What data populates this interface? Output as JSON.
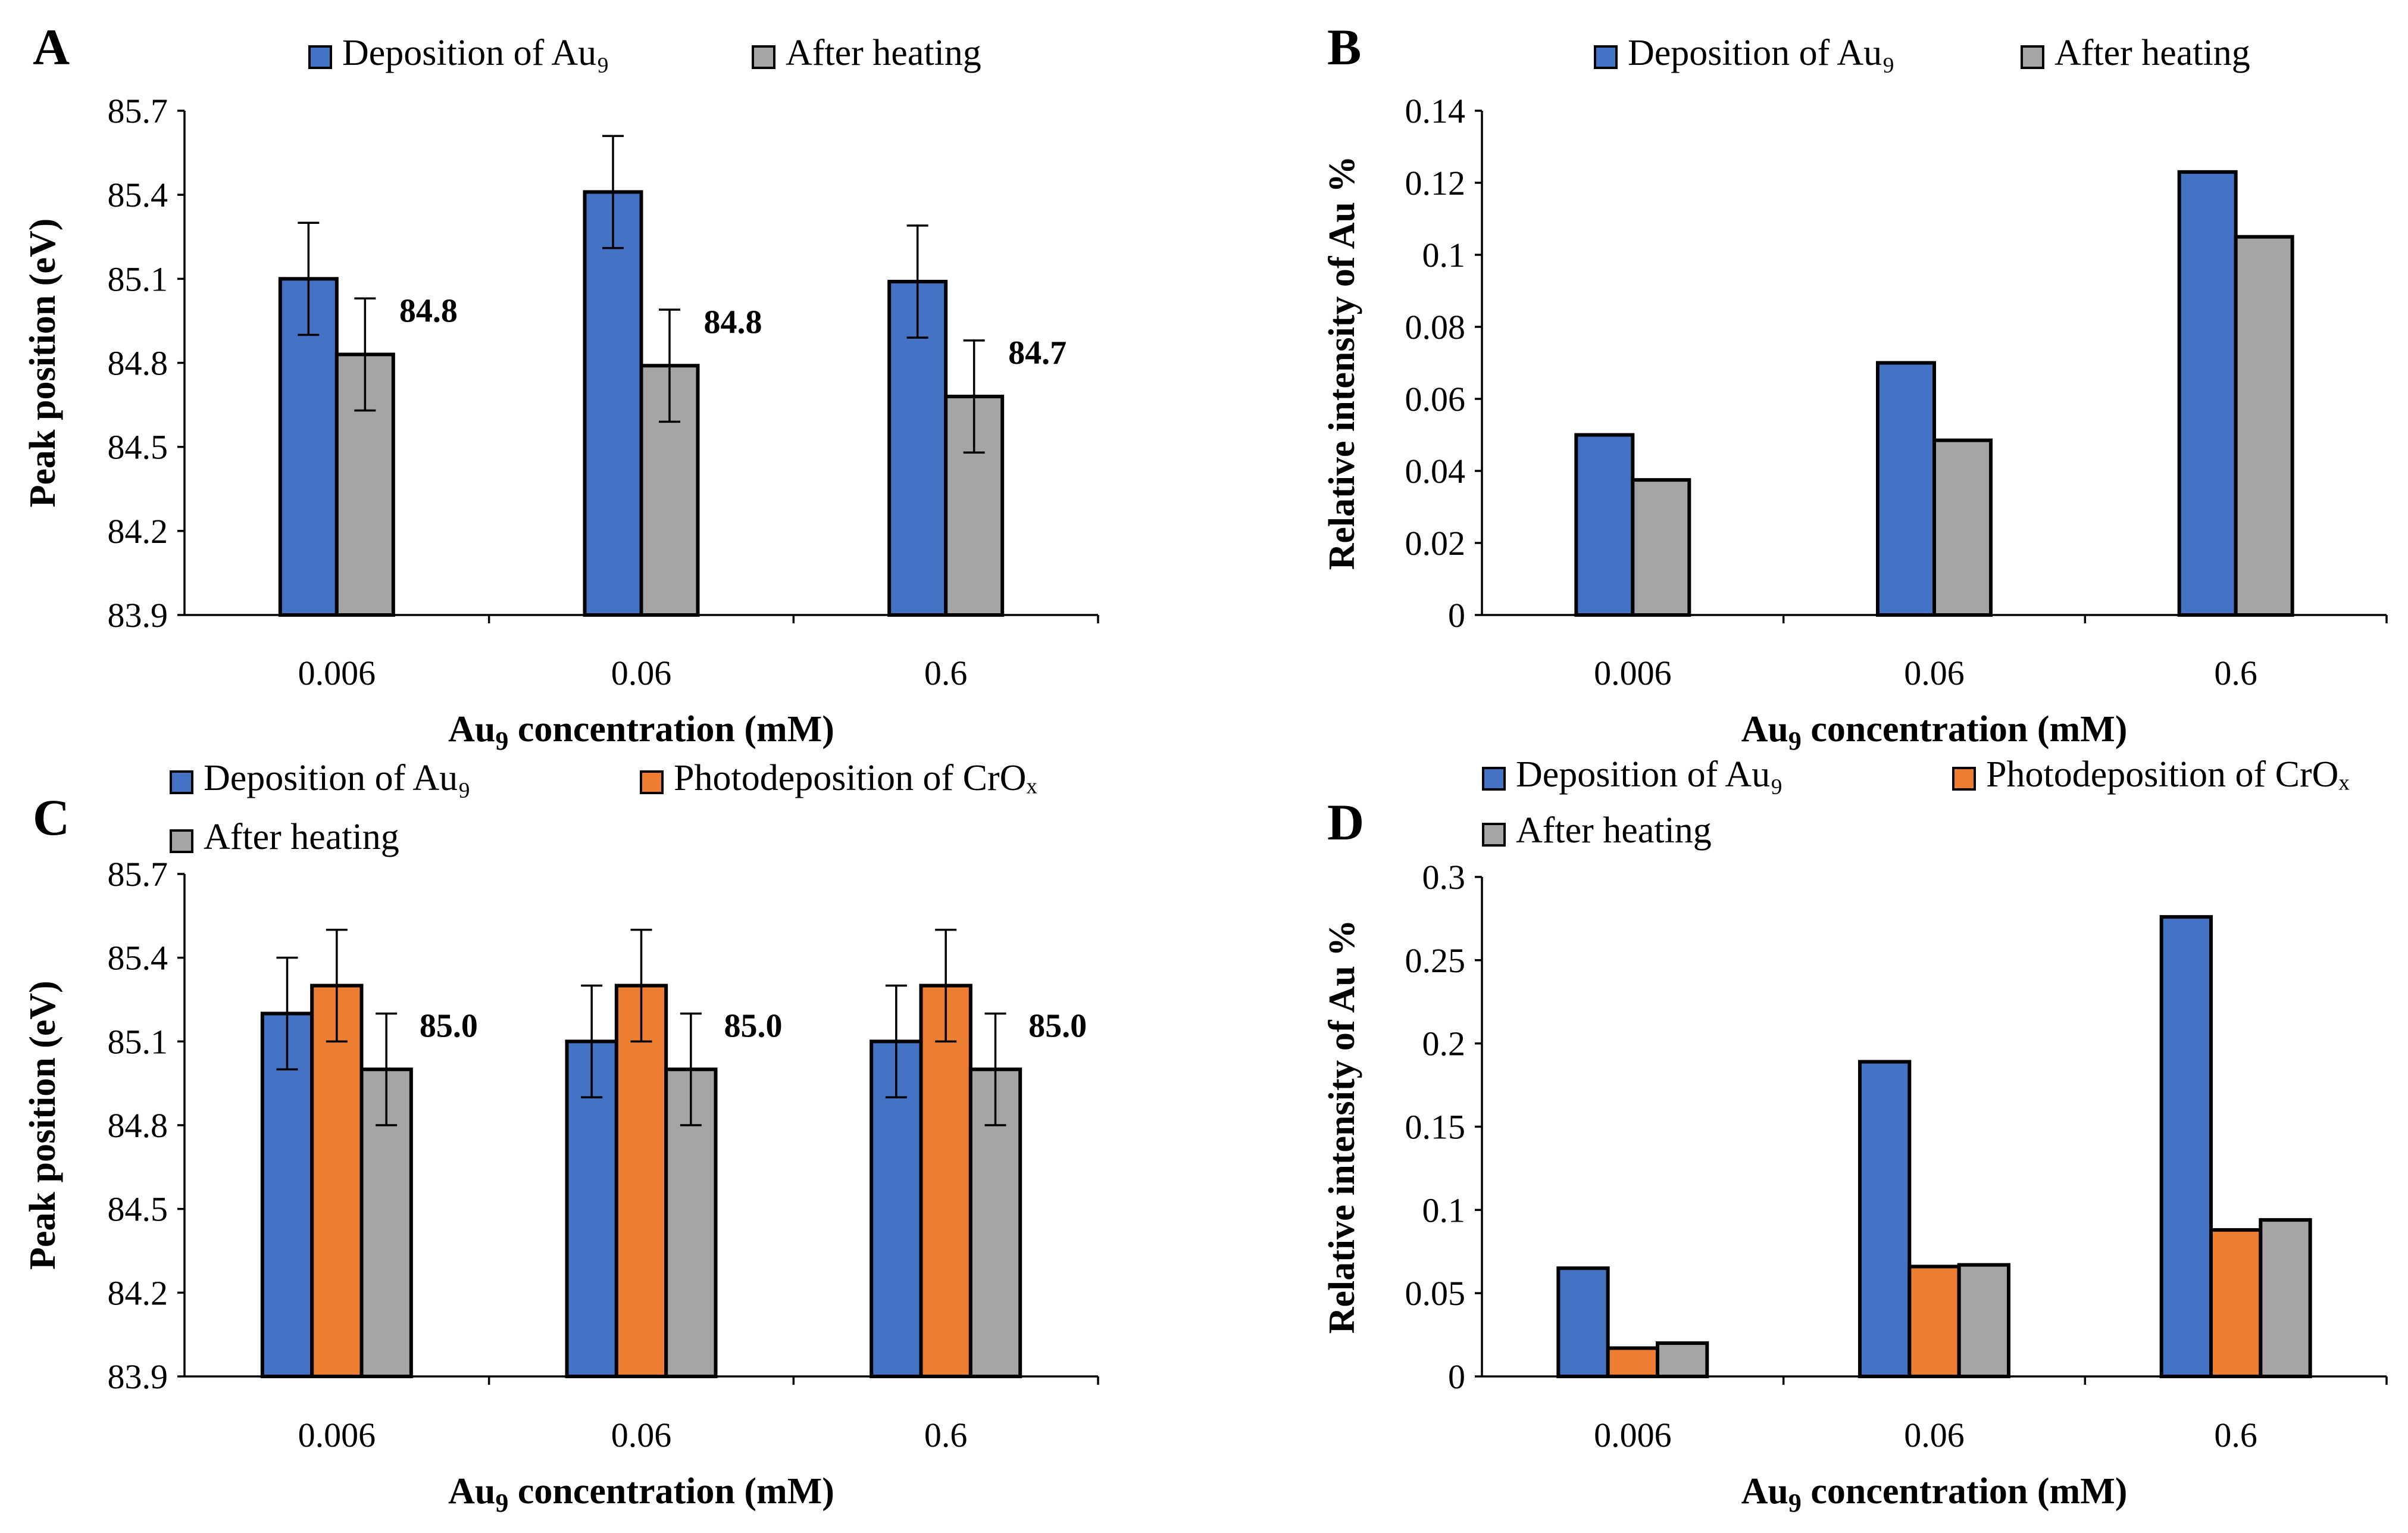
{
  "chart_data": [
    {
      "id": "A",
      "type": "bar",
      "panel_label": "A",
      "xlabel_main": "Au",
      "xlabel_sub": "9",
      "xlabel_rest": " concentration (mM)",
      "ylabel": "Peak position (eV)",
      "ylim": [
        83.9,
        85.7
      ],
      "yticks": [
        "83.9",
        "84.2",
        "84.5",
        "84.8",
        "85.1",
        "85.4",
        "85.7"
      ],
      "categories": [
        "0.006",
        "0.06",
        "0.6"
      ],
      "series": [
        {
          "name": "Deposition of Au₉",
          "color": "#4472C4",
          "values": [
            85.1,
            85.41,
            85.09
          ],
          "errors": [
            0.2,
            0.2,
            0.2
          ]
        },
        {
          "name": "After heating",
          "color": "#A5A5A5",
          "values": [
            84.83,
            84.79,
            84.68
          ],
          "errors": [
            0.2,
            0.2,
            0.2
          ]
        }
      ],
      "data_labels": [
        "84.8",
        "84.8",
        "84.7"
      ]
    },
    {
      "id": "B",
      "type": "bar",
      "panel_label": "B",
      "xlabel_main": "Au",
      "xlabel_sub": "9",
      "xlabel_rest": " concentration (mM)",
      "ylabel": "Relative intensity of Au %",
      "ylim": [
        0,
        0.14
      ],
      "yticks": [
        "0",
        "0.02",
        "0.04",
        "0.06",
        "0.08",
        "0.1",
        "0.12",
        "0.14"
      ],
      "categories": [
        "0.006",
        "0.06",
        "0.6"
      ],
      "series": [
        {
          "name": "Deposition of Au₉",
          "color": "#4472C4",
          "values": [
            0.05,
            0.07,
            0.123
          ]
        },
        {
          "name": "After heating",
          "color": "#A5A5A5",
          "values": [
            0.0375,
            0.0485,
            0.105
          ]
        }
      ]
    },
    {
      "id": "C",
      "type": "bar",
      "panel_label": "C",
      "xlabel_main": "Au",
      "xlabel_sub": "9",
      "xlabel_rest": " concentration (mM)",
      "ylabel": "Peak position (eV)",
      "ylim": [
        83.9,
        85.7
      ],
      "yticks": [
        "83.9",
        "84.2",
        "84.5",
        "84.8",
        "85.1",
        "85.4",
        "85.7"
      ],
      "categories": [
        "0.006",
        "0.06",
        "0.6"
      ],
      "series": [
        {
          "name": "Deposition of Au₉",
          "color": "#4472C4",
          "values": [
            85.2,
            85.1,
            85.1
          ],
          "errors": [
            0.2,
            0.2,
            0.2
          ]
        },
        {
          "name": "Photodeposition of CrOₓ",
          "color": "#ED7D31",
          "values": [
            85.3,
            85.3,
            85.3
          ],
          "errors": [
            0.2,
            0.2,
            0.2
          ]
        },
        {
          "name": "After heating",
          "color": "#A5A5A5",
          "values": [
            85.0,
            85.0,
            85.0
          ],
          "errors": [
            0.2,
            0.2,
            0.2
          ]
        }
      ],
      "data_labels": [
        "85.0",
        "85.0",
        "85.0"
      ]
    },
    {
      "id": "D",
      "type": "bar",
      "panel_label": "D",
      "xlabel_main": "Au",
      "xlabel_sub": "9",
      "xlabel_rest": " concentration (mM)",
      "ylabel": "Relative intensity of Au %",
      "ylim": [
        0,
        0.3
      ],
      "yticks": [
        "0",
        "0.05",
        "0.1",
        "0.15",
        "0.2",
        "0.25",
        "0.3"
      ],
      "categories": [
        "0.006",
        "0.06",
        "0.6"
      ],
      "series": [
        {
          "name": "Deposition of Au₉",
          "color": "#4472C4",
          "values": [
            0.065,
            0.189,
            0.276
          ]
        },
        {
          "name": "Photodeposition of CrOₓ",
          "color": "#ED7D31",
          "values": [
            0.017,
            0.066,
            0.088
          ]
        },
        {
          "name": "After heating",
          "color": "#A5A5A5",
          "values": [
            0.02,
            0.067,
            0.094
          ]
        }
      ]
    }
  ]
}
